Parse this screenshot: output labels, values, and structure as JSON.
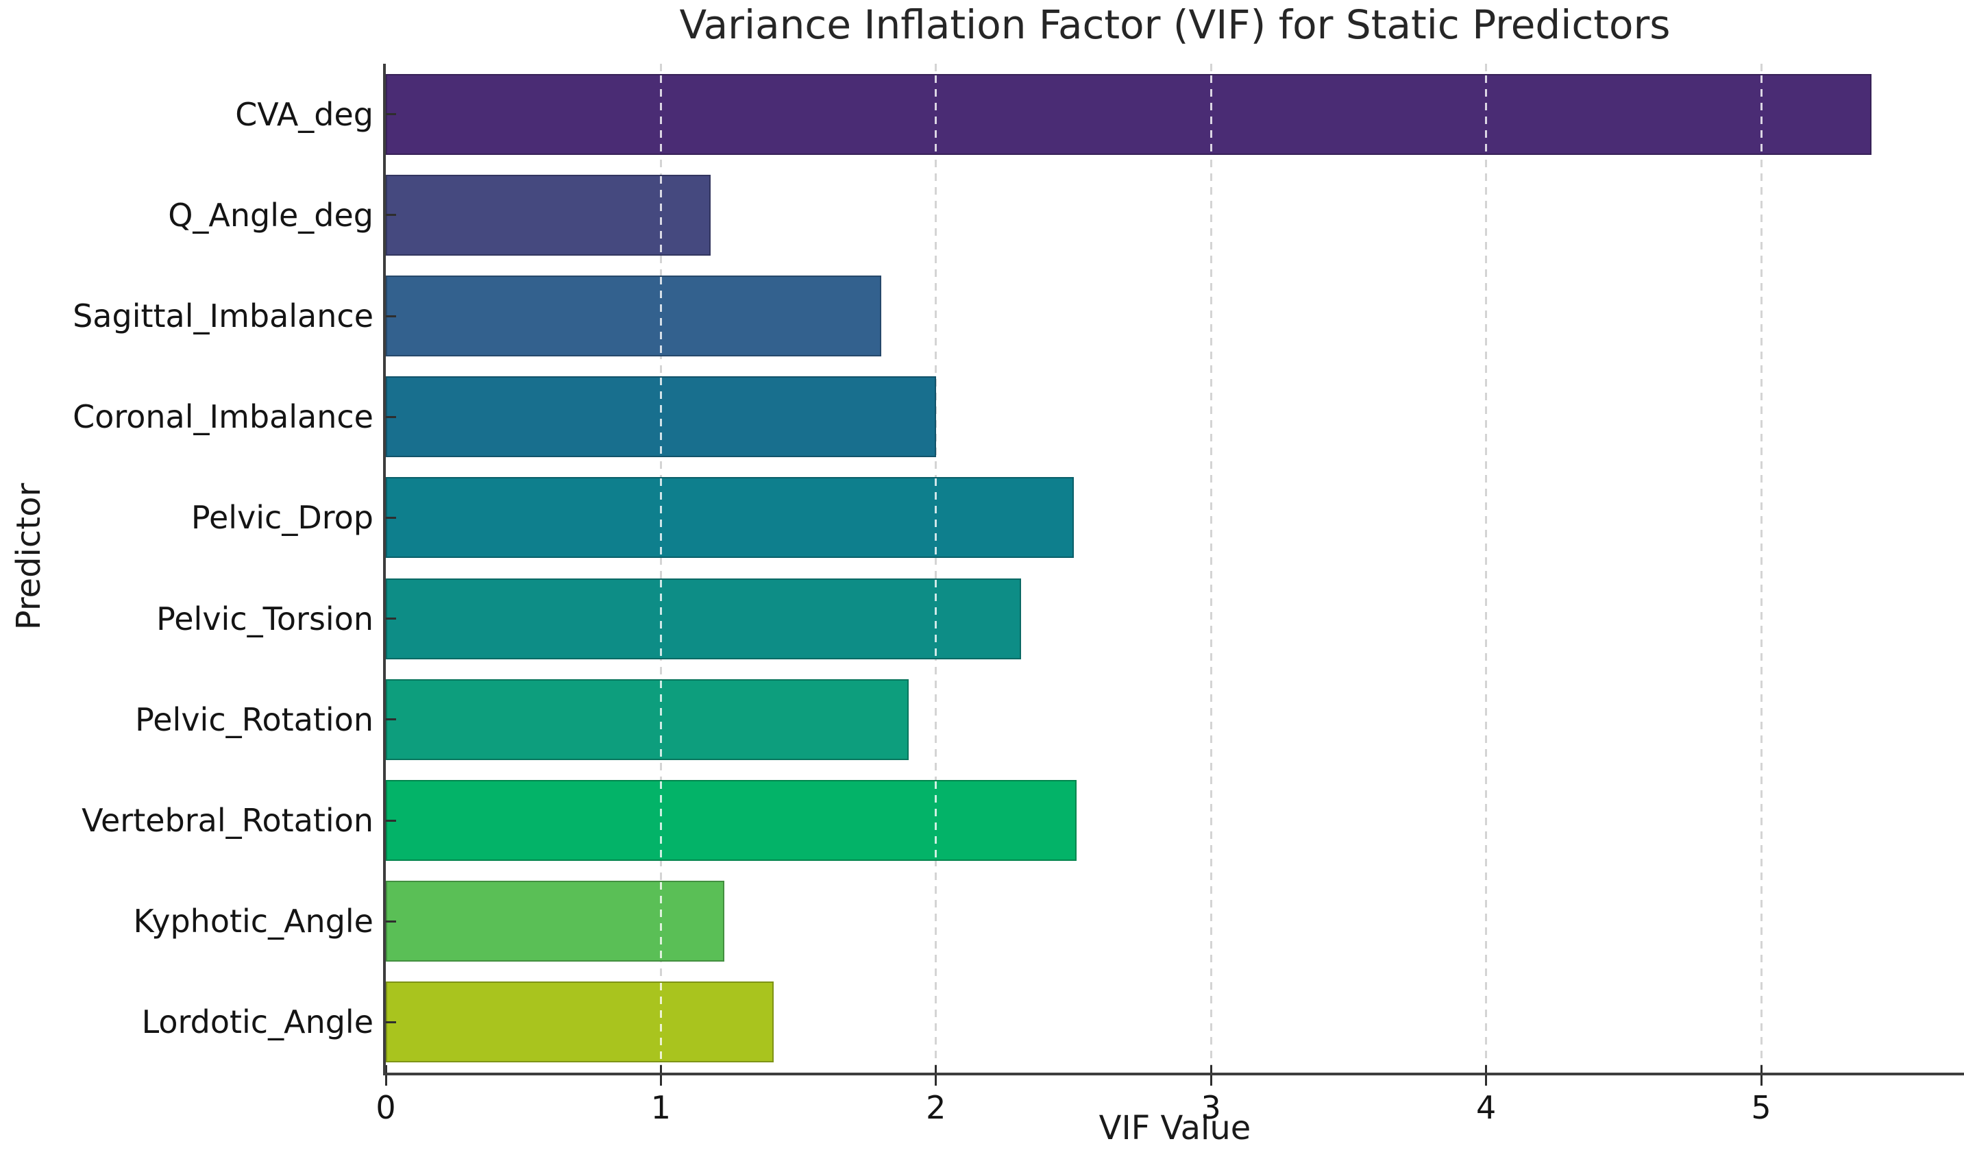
{
  "chart_data": {
    "type": "bar",
    "orientation": "horizontal",
    "title": "Variance Inflation Factor (VIF) for Static Predictors",
    "xlabel": "VIF Value",
    "ylabel": "Predictor",
    "categories": [
      "CVA_deg",
      "Q_Angle_deg",
      "Sagittal_Imbalance",
      "Coronal_Imbalance",
      "Pelvic_Drop",
      "Pelvic_Torsion",
      "Pelvic_Rotation",
      "Vertebral_Rotation",
      "Kyphotic_Angle",
      "Lordotic_Angle"
    ],
    "values": [
      5.4,
      1.18,
      1.8,
      2.0,
      2.5,
      2.31,
      1.9,
      2.51,
      1.23,
      1.41
    ],
    "bar_colors": [
      "#4a2c74",
      "#45497f",
      "#33618e",
      "#186f8e",
      "#0e7f8d",
      "#0d8d86",
      "#0d9e7d",
      "#03b368",
      "#5abf56",
      "#a9c41e"
    ],
    "palette": "viridis",
    "xticks": [
      0,
      1,
      2,
      3,
      4,
      5
    ],
    "xlim": [
      0,
      5.74
    ],
    "grid": {
      "axis": "x",
      "linestyle": "dashed",
      "positions": [
        1,
        2,
        3,
        4,
        5
      ]
    },
    "legend": null
  }
}
